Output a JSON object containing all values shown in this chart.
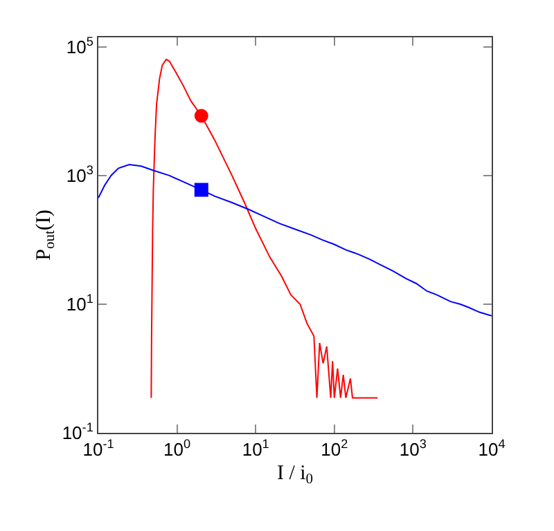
{
  "chart_data": {
    "type": "line",
    "xlabel": "I / i$_{0}$",
    "ylabel": "P$_{out}$(I)",
    "log": "xy",
    "marker": "none",
    "line_style": "solid",
    "xlim": [
      0.1,
      10000
    ],
    "xticks": [
      {
        "value": 0.1,
        "label": "10$^{-1}$"
      },
      {
        "value": 1,
        "label": "10$^{0}$"
      },
      {
        "value": 10,
        "label": "10$^{1}$"
      },
      {
        "value": 100,
        "label": "10$^{2}$"
      },
      {
        "value": 1000,
        "label": "10$^{3}$"
      },
      {
        "value": 10000,
        "label": "10$^{4}$"
      }
    ],
    "ylim": [
      0.1,
      141000
    ],
    "yticks": [
      {
        "value": 0.1,
        "label": "10$^{-1}$"
      },
      {
        "value": 10,
        "label": "10$^{1}$"
      },
      {
        "value": 1000,
        "label": "10$^{3}$"
      },
      {
        "value": 100000,
        "label": "10$^{5}$"
      }
    ],
    "series": [
      {
        "color": "#ff0000",
        "x": [
          0.47,
          0.475,
          0.49,
          0.5,
          0.525,
          0.55,
          0.6,
          0.65,
          0.73,
          0.8,
          0.95,
          1.2,
          1.5,
          2.04,
          3,
          5,
          7.2,
          10,
          15,
          21.4,
          28,
          36.7,
          45,
          55,
          60,
          65,
          72,
          80,
          90,
          95,
          100,
          110,
          120,
          130,
          140,
          160,
          170,
          355
        ],
        "values": [
          0.35,
          3,
          140,
          600,
          3800,
          13000,
          32000,
          52000,
          64000,
          60000,
          42000,
          25000,
          14500,
          8500,
          3600,
          1000,
          380,
          150,
          55,
          27,
          14,
          10,
          5,
          3.2,
          0.35,
          2.5,
          1.2,
          2.2,
          0.35,
          1.3,
          0.35,
          1,
          0.35,
          0.8,
          0.35,
          0.7,
          0.35,
          0.35
        ]
      },
      {
        "color": "#0000ff",
        "x": [
          0.1,
          0.12,
          0.145,
          0.18,
          0.247,
          0.35,
          0.5,
          0.8,
          1.2,
          2.04,
          3,
          5,
          8.3,
          12,
          20,
          30,
          50,
          70,
          100,
          140,
          200,
          280,
          400,
          550,
          815,
          1100,
          1500,
          2000,
          3000,
          4000,
          5000,
          7000,
          10000
        ],
        "values": [
          450,
          700,
          1000,
          1300,
          1480,
          1400,
          1200,
          1000,
          800,
          600,
          480,
          380,
          295,
          240,
          180,
          150,
          120,
          100,
          85,
          70,
          60,
          50,
          40,
          33,
          25,
          21,
          16,
          14,
          11,
          10,
          9,
          7.5,
          6.6
        ]
      },
      {
        "type": "scatter",
        "color": "#ff0000",
        "marker": "circle",
        "x": [
          2.04
        ],
        "values": [
          8500
        ]
      },
      {
        "type": "scatter",
        "color": "#0000ff",
        "marker": "square",
        "x": [
          2.04
        ],
        "values": [
          600
        ]
      }
    ]
  }
}
